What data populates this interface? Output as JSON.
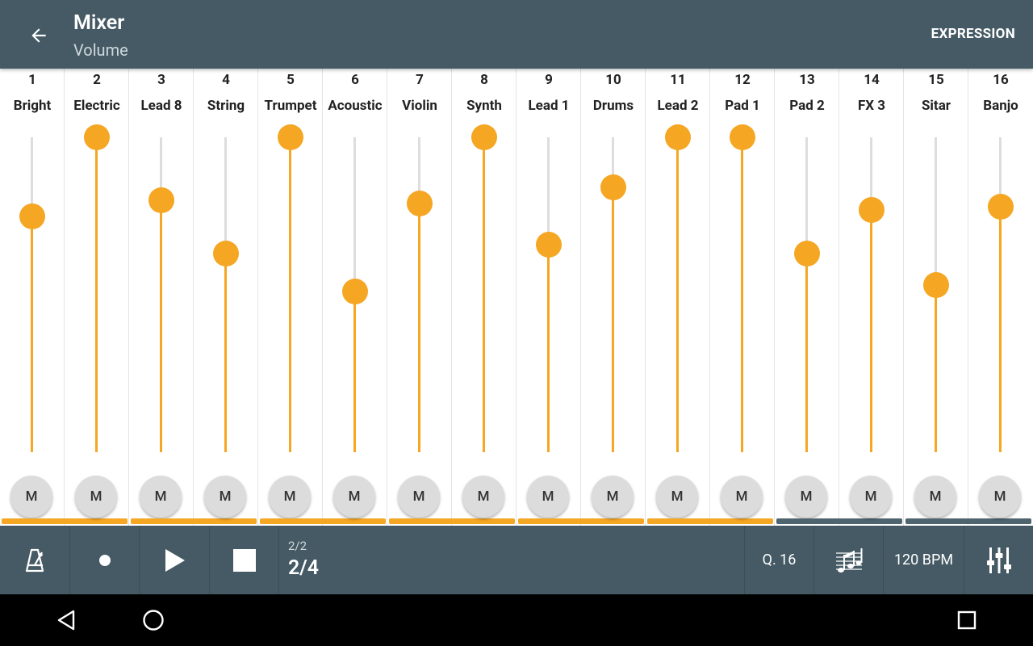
{
  "appbar": {
    "title": "Mixer",
    "subtitle": "Volume",
    "action_label": "EXPRESSION"
  },
  "channels": [
    {
      "number": "1",
      "name": "Bright",
      "level": 0.75,
      "active": true
    },
    {
      "number": "2",
      "name": "Electric",
      "level": 1.0,
      "active": true
    },
    {
      "number": "3",
      "name": "Lead 8",
      "level": 0.8,
      "active": true
    },
    {
      "number": "4",
      "name": "String",
      "level": 0.63,
      "active": true
    },
    {
      "number": "5",
      "name": "Trumpet",
      "level": 1.0,
      "active": true
    },
    {
      "number": "6",
      "name": "Acoustic",
      "level": 0.51,
      "active": true
    },
    {
      "number": "7",
      "name": "Violin",
      "level": 0.79,
      "active": true
    },
    {
      "number": "8",
      "name": "Synth",
      "level": 1.0,
      "active": true
    },
    {
      "number": "9",
      "name": "Lead 1",
      "level": 0.66,
      "active": true
    },
    {
      "number": "10",
      "name": "Drums",
      "level": 0.84,
      "active": true
    },
    {
      "number": "11",
      "name": "Lead 2",
      "level": 1.0,
      "active": true
    },
    {
      "number": "12",
      "name": "Pad 1",
      "level": 1.0,
      "active": true
    },
    {
      "number": "13",
      "name": "Pad 2",
      "level": 0.63,
      "active": false
    },
    {
      "number": "14",
      "name": "FX 3",
      "level": 0.77,
      "active": false
    },
    {
      "number": "15",
      "name": "Sitar",
      "level": 0.53,
      "active": false
    },
    {
      "number": "16",
      "name": "Banjo",
      "level": 0.78,
      "active": false
    }
  ],
  "mute_label": "M",
  "transport": {
    "position_small": "2/2",
    "position_big": "2/4",
    "quantize": "Q. 16",
    "tempo": "120 BPM"
  },
  "colors": {
    "accent": "#f5a623",
    "bar": "#455a64",
    "indicator_active": "#f5a623",
    "indicator_inactive": "#4e6570"
  },
  "icons": {
    "back": "arrow-left-icon",
    "metronome": "metronome-icon",
    "record": "record-icon",
    "play": "play-icon",
    "stop": "stop-icon",
    "score": "music-notes-icon",
    "mixer": "sliders-icon",
    "nav_back": "triangle-back-icon",
    "nav_home": "circle-home-icon",
    "nav_recents": "square-recents-icon"
  }
}
